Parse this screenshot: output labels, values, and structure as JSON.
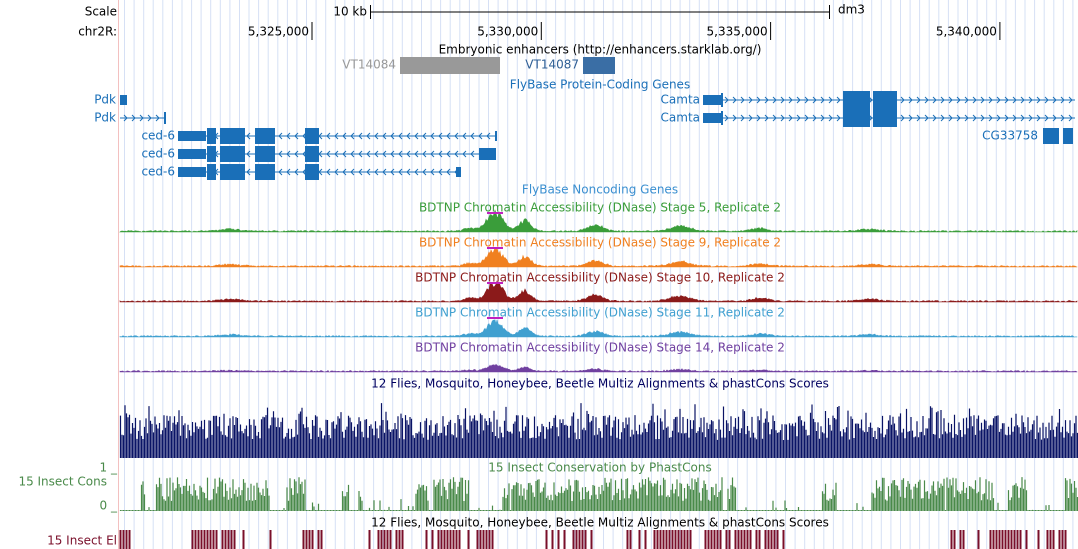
{
  "ruler": {
    "scale_label": "Scale",
    "chrom_label": "chr2R:",
    "scale_bar_label": "10 kb",
    "assembly": "dm3",
    "ticks": [
      "5,325,000",
      "5,330,000",
      "5,335,000",
      "5,340,000"
    ]
  },
  "enhancers": {
    "title": "Embryonic enhancers (http://enhancers.starklab.org/)",
    "items": [
      "VT14084",
      "VT14087"
    ]
  },
  "coding_genes": {
    "title": "FlyBase Protein-Coding Genes",
    "genes": [
      "Pdk",
      "Pdk",
      "Camta",
      "Camta",
      "CG33758",
      "ced-6",
      "ced-6",
      "ced-6"
    ]
  },
  "noncoding_genes": {
    "title": "FlyBase Noncoding Genes"
  },
  "dnase": [
    "BDTNP Chromatin Accessibility (DNase) Stage 5, Replicate 2",
    "BDTNP Chromatin Accessibility (DNase) Stage 9, Replicate 2",
    "BDTNP Chromatin Accessibility (DNase) Stage 10, Replicate 2",
    "BDTNP Chromatin Accessibility (DNase) Stage 11, Replicate 2",
    "BDTNP Chromatin Accessibility (DNase) Stage 14, Replicate 2"
  ],
  "multiz": {
    "title": "12 Flies, Mosquito, Honeybee, Beetle Multiz Alignments & phastCons Scores"
  },
  "phastcons": {
    "label": "15 Insect Cons",
    "title": "15 Insect Conservation by PhastCons",
    "max_label": "1 _",
    "min_label": "0 _"
  },
  "elements": {
    "title": "12 Flies, Mosquito, Honeybee, Beetle Multiz Alignments & phastCons Scores",
    "label": "15 Insect El"
  }
}
